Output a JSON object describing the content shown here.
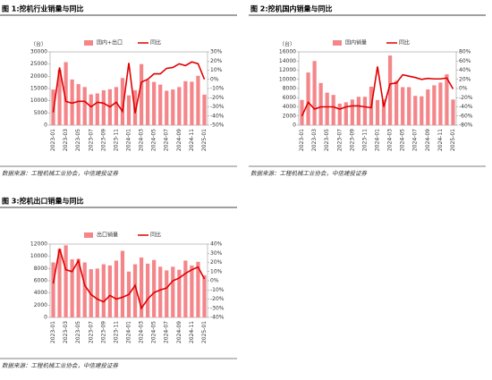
{
  "chart_data": [
    {
      "type": "combo",
      "title": "图 1:挖机行业销量与同比",
      "source": "数据来源：工程机械工业协会，中信建投证券",
      "unit": "（台）",
      "categories": [
        "2023-01",
        null,
        "2023-03",
        null,
        "2023-05",
        null,
        "2023-07",
        null,
        "2023-09",
        null,
        "2023-11",
        null,
        "2024-01",
        null,
        "2024-03",
        null,
        "2024-05",
        null,
        "2024-07",
        null,
        "2024-09",
        null,
        "2024-11",
        null,
        "2025-01"
      ],
      "ylim": [
        0,
        30000
      ],
      "yticks": [
        0,
        5000,
        10000,
        15000,
        20000,
        25000,
        30000
      ],
      "y2lim": [
        -50,
        30
      ],
      "y2ticks": [
        {
          "value": -50,
          "label": "-50%"
        },
        {
          "value": -40,
          "label": "-40%"
        },
        {
          "value": -30,
          "label": "-30%"
        },
        {
          "value": -20,
          "label": "-20%"
        },
        {
          "value": -10,
          "label": "-10%"
        },
        {
          "value": 0,
          "label": "0%"
        },
        {
          "value": 10,
          "label": "10%"
        },
        {
          "value": 20,
          "label": "20%"
        },
        {
          "value": 30,
          "label": "30%"
        }
      ],
      "series": [
        {
          "name": "国内+出口",
          "type": "bar",
          "color": "#f4868a",
          "values": [
            14600,
            22600,
            25800,
            18700,
            16800,
            15600,
            12600,
            13000,
            14300,
            14700,
            15600,
            19300,
            12200,
            14300,
            25000,
            18500,
            17700,
            16600,
            14100,
            14600,
            15600,
            18000,
            17800,
            20200,
            12500
          ]
        },
        {
          "name": "同比",
          "type": "line",
          "axis": "y2",
          "color": "#e00000",
          "values": [
            -36,
            13,
            -24,
            -26,
            -24,
            -24,
            -30,
            -25,
            -26,
            -30,
            -25,
            -35,
            18,
            -37,
            -3,
            0,
            6,
            6,
            12,
            13,
            17,
            15,
            19,
            17,
            0
          ]
        }
      ]
    },
    {
      "type": "combo",
      "title": "图 2:挖机国内销量与同比",
      "source": "数据来源：工程机械工业协会，中信建投证券",
      "unit": "（台）",
      "categories": [
        "2023-01",
        null,
        "2023-03",
        null,
        "2023-05",
        null,
        "2023-07",
        null,
        "2023-09",
        null,
        "2023-11",
        null,
        "2024-01",
        null,
        "2024-03",
        null,
        "2024-05",
        null,
        "2024-07",
        null,
        "2024-09",
        null,
        "2024-11",
        null,
        "2025-01"
      ],
      "ylim": [
        0,
        16000
      ],
      "yticks": [
        0,
        2000,
        4000,
        6000,
        8000,
        10000,
        12000,
        14000,
        16000
      ],
      "y2lim": [
        -80,
        80
      ],
      "y2ticks": [
        {
          "value": -80,
          "label": "-80%"
        },
        {
          "value": -60,
          "label": "-60%"
        },
        {
          "value": -40,
          "label": "-40%"
        },
        {
          "value": -20,
          "label": "-20%"
        },
        {
          "value": 0,
          "label": "0%"
        },
        {
          "value": 20,
          "label": "20%"
        },
        {
          "value": 40,
          "label": "40%"
        },
        {
          "value": 60,
          "label": "60%"
        },
        {
          "value": 80,
          "label": "80%"
        }
      ],
      "series": [
        {
          "name": "国内销量",
          "type": "bar",
          "color": "#f4868a",
          "values": [
            5500,
            11500,
            14000,
            9200,
            7100,
            6600,
            4700,
            5000,
            5600,
            6200,
            6200,
            8400,
            5500,
            5600,
            15200,
            9700,
            8300,
            8300,
            6400,
            6300,
            7800,
            8700,
            9300,
            11100,
            5600
          ]
        },
        {
          "name": "同比",
          "type": "line",
          "axis": "y2",
          "color": "#e00000",
          "values": [
            -60,
            -30,
            -45,
            -40,
            -40,
            -40,
            -45,
            -40,
            -38,
            -38,
            -40,
            -42,
            48,
            -40,
            10,
            12,
            30,
            27,
            24,
            20,
            22,
            21,
            21,
            23,
            -1
          ]
        }
      ]
    },
    {
      "type": "combo",
      "title": "图 3:挖机出口销量与同比",
      "source": "数据来源：工程机械工业协会，中信建投证券",
      "categories": [
        "2023-01",
        null,
        "2023-03",
        null,
        "2023-05",
        null,
        "2023-07",
        null,
        "2023-09",
        null,
        "2023-11",
        null,
        "2024-01",
        null,
        "2024-03",
        null,
        "2024-05",
        null,
        "2024-07",
        null,
        "2024-09",
        null,
        "2024-11",
        null,
        "2025-01"
      ],
      "ylim": [
        0,
        12000
      ],
      "yticks": [
        0,
        2000,
        4000,
        6000,
        8000,
        10000,
        12000
      ],
      "y2lim": [
        -40,
        40
      ],
      "y2ticks": [
        {
          "value": -40,
          "label": "-40%"
        },
        {
          "value": -30,
          "label": "-30%"
        },
        {
          "value": -20,
          "label": "-20%"
        },
        {
          "value": -10,
          "label": "-10%"
        },
        {
          "value": 0,
          "label": "0%"
        },
        {
          "value": 10,
          "label": "10%"
        },
        {
          "value": 20,
          "label": "20%"
        },
        {
          "value": 30,
          "label": "30%"
        },
        {
          "value": 40,
          "label": "40%"
        }
      ],
      "series": [
        {
          "name": "出口销量",
          "type": "bar",
          "color": "#f4868a",
          "values": [
            9000,
            11200,
            11800,
            9500,
            9600,
            9000,
            7900,
            8000,
            8700,
            8500,
            9300,
            10900,
            7500,
            8700,
            9800,
            8800,
            9400,
            8300,
            7700,
            8300,
            7800,
            9300,
            8500,
            9100,
            6900
          ]
        },
        {
          "name": "同比",
          "type": "line",
          "axis": "y2",
          "color": "#e00000",
          "values": [
            -3,
            35,
            12,
            10,
            22,
            -5,
            -15,
            -20,
            -23,
            -16,
            -20,
            -18,
            -15,
            -5,
            -30,
            -20,
            -13,
            -10,
            -8,
            0,
            3,
            8,
            12,
            15,
            2
          ]
        }
      ]
    }
  ]
}
